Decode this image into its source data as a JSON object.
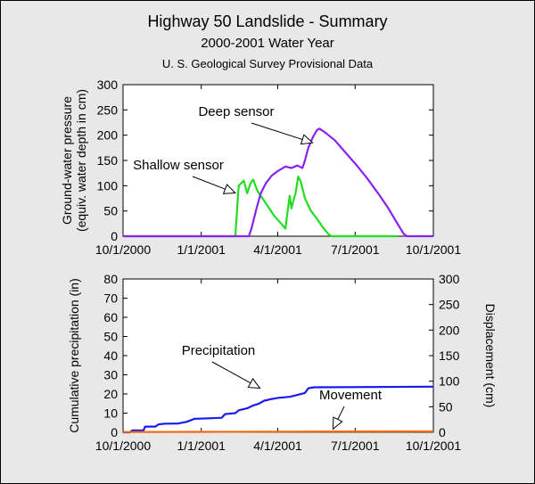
{
  "header": {
    "title": "Highway 50 Landslide - Summary",
    "subtitle": "2000-2001 Water Year",
    "note": "U. S. Geological Survey Provisional Data"
  },
  "chart_data": [
    {
      "type": "line",
      "title": "",
      "ylabel": "Ground-water pressure (equiv. water depth in cm)",
      "ylabel_lines": [
        "Ground-water pressure",
        "(equiv. water depth in cm)"
      ],
      "xlim": [
        "10/1/2000",
        "10/1/2001"
      ],
      "ylim": [
        0,
        300
      ],
      "x_ticks": [
        "10/1/2000",
        "1/1/2001",
        "4/1/2001",
        "7/1/2001",
        "10/1/2001"
      ],
      "y_ticks": [
        0,
        50,
        100,
        150,
        200,
        250,
        300
      ],
      "grid": false,
      "series": [
        {
          "name": "Shallow sensor",
          "color": "#22dd22",
          "points": [
            [
              "10/1/2000",
              0
            ],
            [
              "2/10/2001",
              0
            ],
            [
              "2/14/2001",
              100
            ],
            [
              "2/20/2001",
              110
            ],
            [
              "2/24/2001",
              85
            ],
            [
              "2/28/2001",
              105
            ],
            [
              "3/3/2001",
              112
            ],
            [
              "3/8/2001",
              90
            ],
            [
              "3/18/2001",
              65
            ],
            [
              "3/28/2001",
              40
            ],
            [
              "4/5/2001",
              25
            ],
            [
              "4/10/2001",
              15
            ],
            [
              "4/13/2001",
              55
            ],
            [
              "4/15/2001",
              80
            ],
            [
              "4/17/2001",
              55
            ],
            [
              "4/19/2001",
              68
            ],
            [
              "4/22/2001",
              85
            ],
            [
              "4/25/2001",
              118
            ],
            [
              "4/28/2001",
              108
            ],
            [
              "5/3/2001",
              75
            ],
            [
              "5/10/2001",
              50
            ],
            [
              "5/17/2001",
              35
            ],
            [
              "5/23/2001",
              20
            ],
            [
              "5/30/2001",
              5
            ],
            [
              "6/3/2001",
              0
            ],
            [
              "8/20/2001",
              0
            ]
          ]
        },
        {
          "name": "Deep sensor",
          "color": "#8822ee",
          "points": [
            [
              "10/1/2000",
              0
            ],
            [
              "2/26/2001",
              0
            ],
            [
              "3/1/2001",
              15
            ],
            [
              "3/7/2001",
              55
            ],
            [
              "3/12/2001",
              85
            ],
            [
              "3/18/2001",
              105
            ],
            [
              "3/25/2001",
              120
            ],
            [
              "4/2/2001",
              130
            ],
            [
              "4/10/2001",
              138
            ],
            [
              "4/17/2001",
              135
            ],
            [
              "4/24/2001",
              140
            ],
            [
              "4/30/2001",
              135
            ],
            [
              "5/3/2001",
              150
            ],
            [
              "5/7/2001",
              175
            ],
            [
              "5/12/2001",
              195
            ],
            [
              "5/17/2001",
              210
            ],
            [
              "5/20/2001",
              213
            ],
            [
              "5/27/2001",
              205
            ],
            [
              "6/7/2001",
              190
            ],
            [
              "6/20/2001",
              165
            ],
            [
              "7/3/2001",
              140
            ],
            [
              "7/15/2001",
              115
            ],
            [
              "7/28/2001",
              85
            ],
            [
              "8/8/2001",
              58
            ],
            [
              "8/18/2001",
              30
            ],
            [
              "8/27/2001",
              5
            ],
            [
              "8/31/2001",
              0
            ],
            [
              "10/1/2001",
              0
            ]
          ]
        }
      ],
      "annotations": [
        {
          "text": "Deep sensor",
          "target": [
            "5/12/2001",
            185
          ]
        },
        {
          "text": "Shallow sensor",
          "target": [
            "2/12/2001",
            75
          ]
        }
      ]
    },
    {
      "type": "line",
      "title": "",
      "ylabel": "Cumulative precipitation (in)",
      "ylabel_right": "Displacement (cm)",
      "xlim": [
        "10/1/2000",
        "10/1/2001"
      ],
      "ylim": [
        0,
        80
      ],
      "ylim_right": [
        0,
        300
      ],
      "x_ticks": [
        "10/1/2000",
        "1/1/2001",
        "4/1/2001",
        "7/1/2001",
        "10/1/2001"
      ],
      "y_ticks": [
        0,
        10,
        20,
        30,
        40,
        50,
        60,
        70,
        80
      ],
      "y_ticks_right": [
        0,
        50,
        100,
        150,
        200,
        250,
        300
      ],
      "grid": false,
      "series": [
        {
          "name": "Precipitation",
          "color": "#1a1aee",
          "axis": "left",
          "points": [
            [
              "10/1/2000",
              0
            ],
            [
              "10/9/2000",
              0
            ],
            [
              "10/12/2000",
              1
            ],
            [
              "10/25/2000",
              1
            ],
            [
              "10/27/2000",
              3
            ],
            [
              "11/8/2000",
              3
            ],
            [
              "11/12/2000",
              4.2
            ],
            [
              "11/20/2000",
              4.5
            ],
            [
              "12/5/2000",
              4.6
            ],
            [
              "12/15/2000",
              5.5
            ],
            [
              "12/24/2000",
              7
            ],
            [
              "1/10/2001",
              7.3
            ],
            [
              "1/25/2001",
              7.6
            ],
            [
              "1/29/2001",
              9.5
            ],
            [
              "2/10/2001",
              10
            ],
            [
              "2/14/2001",
              11.5
            ],
            [
              "2/24/2001",
              12.5
            ],
            [
              "3/3/2001",
              14
            ],
            [
              "3/10/2001",
              15
            ],
            [
              "3/16/2001",
              16.5
            ],
            [
              "3/26/2001",
              17.5
            ],
            [
              "4/2/2001",
              18
            ],
            [
              "4/15/2001",
              18.5
            ],
            [
              "4/24/2001",
              19.5
            ],
            [
              "5/3/2001",
              20.5
            ],
            [
              "5/7/2001",
              23
            ],
            [
              "5/14/2001",
              23.5
            ],
            [
              "10/1/2001",
              23.8
            ]
          ]
        },
        {
          "name": "Movement",
          "color": "#ee6a10",
          "axis": "right",
          "points": [
            [
              "10/1/2000",
              0.5
            ],
            [
              "1/1/2001",
              0.8
            ],
            [
              "4/1/2001",
              1.2
            ],
            [
              "7/1/2001",
              1.5
            ],
            [
              "10/1/2001",
              1.8
            ]
          ]
        }
      ],
      "annotations": [
        {
          "text": "Precipitation",
          "target": [
            "3/11/2001",
            23
          ]
        },
        {
          "text": "Movement",
          "target": [
            "6/5/2001",
            3
          ]
        }
      ]
    }
  ]
}
